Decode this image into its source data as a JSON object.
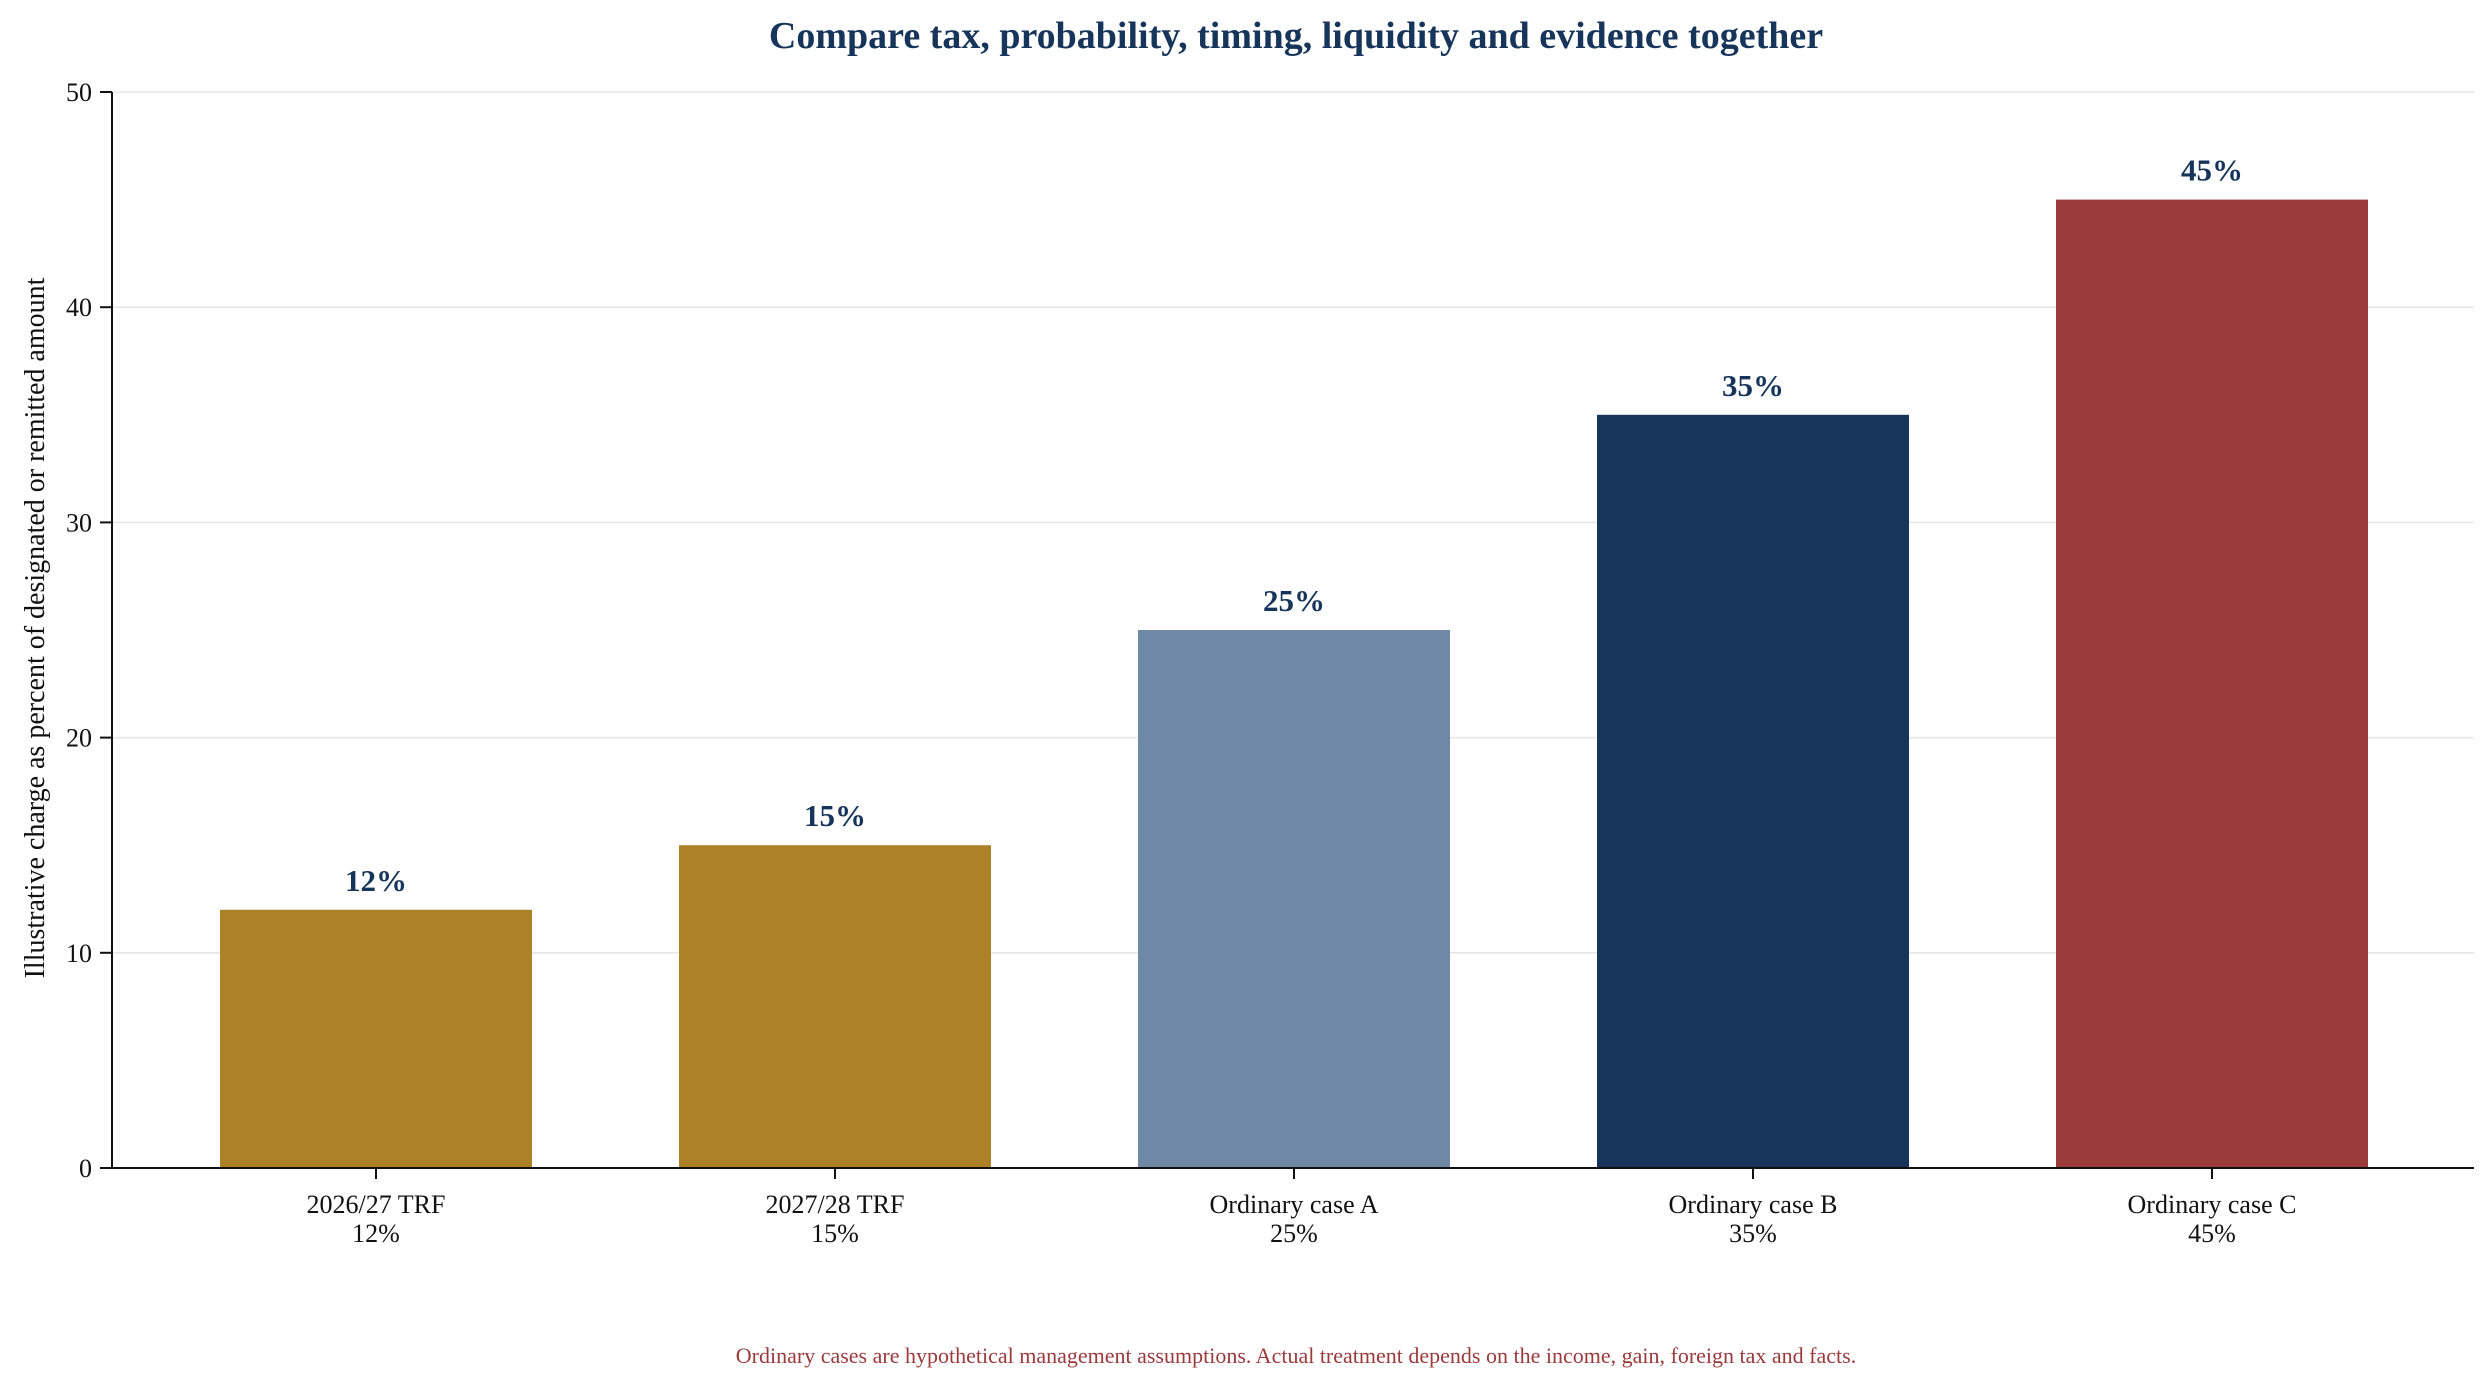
{
  "chart_data": {
    "type": "bar",
    "title": "Compare tax, probability, timing, liquidity and evidence together",
    "xlabel": "",
    "ylabel": "Illustrative charge as percent of designated or remitted amount",
    "ylim": [
      0,
      50
    ],
    "yticks": [
      0,
      10,
      20,
      30,
      40,
      50
    ],
    "grid": "horizontal",
    "categories": [
      {
        "name": "2026/27 TRF",
        "sub": "12%"
      },
      {
        "name": "2027/28 TRF",
        "sub": "15%"
      },
      {
        "name": "Ordinary case A",
        "sub": "25%"
      },
      {
        "name": "Ordinary case B",
        "sub": "35%"
      },
      {
        "name": "Ordinary case C",
        "sub": "45%"
      }
    ],
    "values": [
      12,
      15,
      25,
      35,
      45
    ],
    "data_labels": [
      "12%",
      "15%",
      "25%",
      "35%",
      "45%"
    ],
    "bar_colors": [
      "#ad8125",
      "#ad8125",
      "#6f88a5",
      "#17355b",
      "#9a3a3b"
    ],
    "footnote": "Ordinary cases are hypothetical management assumptions. Actual treatment depends on the income, gain, foreign tax and facts."
  },
  "colors": {
    "title": "#17355b",
    "data_label": "#17355b",
    "footnote": "#9a3a3b",
    "axis": "#111111",
    "grid": "#e6e6e6"
  }
}
